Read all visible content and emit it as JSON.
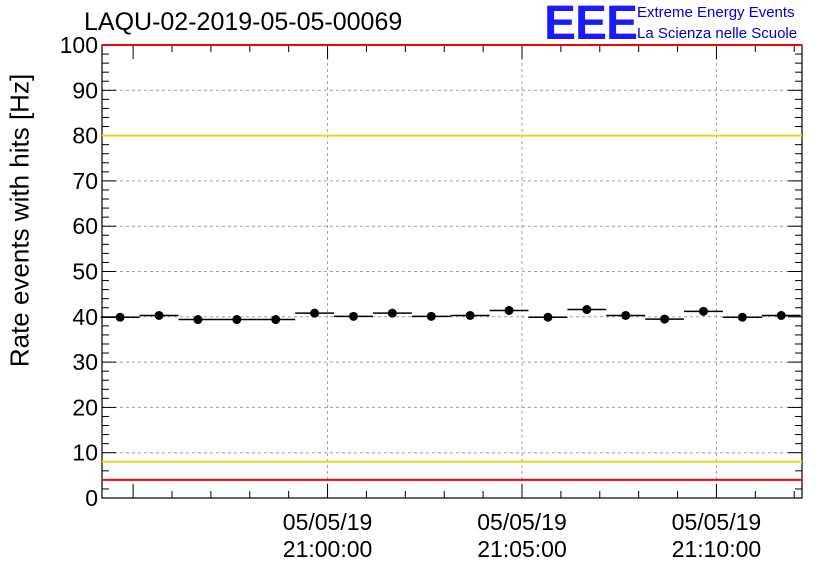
{
  "title": "LAQU-02-2019-05-05-00069",
  "logo": {
    "mark": "EEE",
    "line1": "Extreme Energy Events",
    "line2": "La Scienza nelle Scuole"
  },
  "chart_data": {
    "type": "scatter",
    "title": "LAQU-02-2019-05-05-00069",
    "ylabel": "Rate events with hits [Hz]",
    "xlabel": "",
    "ylim": [
      0,
      100
    ],
    "yticks": [
      0,
      10,
      20,
      30,
      40,
      50,
      60,
      70,
      80,
      90,
      100
    ],
    "xlim_minutes": [
      -5.8,
      12.2
    ],
    "x_ticklabels": [
      {
        "minute": 0,
        "date": "05/05/19",
        "time": "21:00:00"
      },
      {
        "minute": 5,
        "date": "05/05/19",
        "time": "21:05:00"
      },
      {
        "minute": 10,
        "date": "05/05/19",
        "time": "21:10:00"
      }
    ],
    "grid": true,
    "points": [
      {
        "x": "20:54:40",
        "y": 39.9
      },
      {
        "x": "20:55:40",
        "y": 40.3
      },
      {
        "x": "20:56:40",
        "y": 39.4
      },
      {
        "x": "20:57:40",
        "y": 39.4
      },
      {
        "x": "20:58:40",
        "y": 39.4
      },
      {
        "x": "20:59:40",
        "y": 40.8
      },
      {
        "x": "21:00:40",
        "y": 40.1
      },
      {
        "x": "21:01:40",
        "y": 40.8
      },
      {
        "x": "21:02:40",
        "y": 40.1
      },
      {
        "x": "21:03:40",
        "y": 40.3
      },
      {
        "x": "21:04:40",
        "y": 41.4
      },
      {
        "x": "21:05:40",
        "y": 39.9
      },
      {
        "x": "21:06:40",
        "y": 41.6
      },
      {
        "x": "21:07:40",
        "y": 40.3
      },
      {
        "x": "21:08:40",
        "y": 39.5
      },
      {
        "x": "21:09:40",
        "y": 41.2
      },
      {
        "x": "21:10:40",
        "y": 39.9
      },
      {
        "x": "21:11:40",
        "y": 40.3
      }
    ],
    "reference_lines": [
      {
        "y": 100,
        "color": "#ff0000"
      },
      {
        "y": 80,
        "color": "#f2d21f"
      },
      {
        "y": 8,
        "color": "#f2d21f"
      },
      {
        "y": 4,
        "color": "#ff0000"
      }
    ]
  }
}
